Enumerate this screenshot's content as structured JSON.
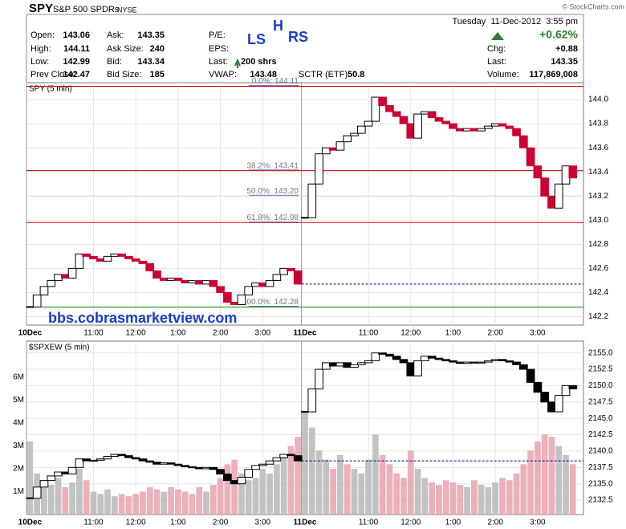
{
  "header": {
    "symbol": "SPY",
    "name": "S&P 500 SPDRs",
    "exchange": "NYSE",
    "datetime": "Tuesday  11-Dec-2012  3:55 pm",
    "copyright": "© StockCharts.com",
    "annotations": [
      "LS",
      "H",
      "RS"
    ],
    "quote": [
      [
        {
          "label": "Open:",
          "value": 143.06
        },
        {
          "label": "High:",
          "value": 144.11
        },
        {
          "label": "Low:",
          "value": 142.99
        },
        {
          "label": "Prev Close:",
          "value": 142.47
        }
      ],
      [
        {
          "label": "Ask:",
          "value": 143.35
        },
        {
          "label": "Ask Size:",
          "value": 240
        },
        {
          "label": "Bid:",
          "value": 143.34
        },
        {
          "label": "Bid Size:",
          "value": 185
        }
      ],
      [
        {
          "label": "P/E:"
        },
        {
          "label": "EPS:"
        },
        {
          "label": "Last:",
          "value": "200 shrs"
        },
        {
          "label": "VWAP:",
          "value": 143.48
        }
      ],
      [
        {
          "label": "SCTR (ETF):",
          "value": 50.8
        }
      ],
      [
        {
          "value": {
            "value": 0.62,
            "label": "+0.62%"
          }
        },
        {
          "label": "Chg:",
          "value": {
            "value": 0.88,
            "label": "+0.88"
          }
        },
        {
          "label": "Last:",
          "value": 143.35
        },
        {
          "label": "Volume:",
          "value": {
            "value": 117869008,
            "label": "117,869,008"
          }
        }
      ]
    ]
  },
  "x_axis": {
    "dates": [
      "10Dec",
      "11Dec"
    ],
    "time_ticks": [
      {
        "value": 9,
        "label": "11:00"
      },
      {
        "value": 15,
        "label": "12:00"
      },
      {
        "value": 21,
        "label": "1:00"
      },
      {
        "value": 27,
        "label": "2:00"
      },
      {
        "value": 33,
        "label": "3:00"
      }
    ],
    "xlim": [
      -0.5,
      78.5
    ]
  },
  "chart_data": [
    {
      "type": "candlestick",
      "title": "SPY (5 min)",
      "watermark": "bbs.cobrasmarketview.com",
      "up_color": "#000000",
      "down_color": "#cc0033",
      "prev_close_line_color": "#000080",
      "grid": true,
      "ylim": [
        142.13,
        144.14
      ],
      "yticks": [
        142.2,
        142.4,
        142.6,
        142.8,
        {
          "value": 143,
          "label": "143.0"
        },
        143.2,
        143.4,
        143.6,
        143.8,
        {
          "value": 144,
          "label": "144.0"
        }
      ],
      "levels": [
        {
          "value": 144.11,
          "label": "0.0%: 144.11",
          "color": "#cc0000"
        },
        {
          "value": 143.41,
          "label": "38.2%: 143.41",
          "color": "#cc0000"
        },
        {
          "value": 143.2,
          "label": "50.0%: 143.20",
          "color": "#dddddd"
        },
        {
          "value": 142.98,
          "label": "61.8%: 142.98",
          "color": "#cc0000"
        },
        {
          "value": 142.28,
          "label": "100.0%: 142.28",
          "color": "#008800"
        }
      ],
      "days": [
        {
          "close": [
            142.28,
            142.38,
            142.45,
            142.5,
            142.55,
            142.52,
            142.6,
            142.72,
            142.7,
            142.68,
            142.66,
            142.7,
            142.72,
            142.7,
            142.68,
            142.66,
            142.64,
            142.58,
            142.52,
            142.5,
            142.52,
            142.5,
            142.48,
            142.5,
            142.47,
            142.5,
            142.45,
            142.4,
            142.32,
            142.3,
            142.38,
            142.45,
            142.48,
            142.45,
            142.5,
            142.55,
            142.6,
            142.58,
            142.47
          ]
        },
        {
          "close": [
            143.02,
            143.3,
            143.55,
            143.6,
            143.58,
            143.65,
            143.7,
            143.72,
            143.78,
            143.82,
            144.02,
            143.95,
            143.9,
            143.86,
            143.8,
            143.68,
            143.88,
            143.9,
            143.85,
            143.82,
            143.8,
            143.76,
            143.74,
            143.76,
            143.74,
            143.76,
            143.78,
            143.8,
            143.78,
            143.76,
            143.7,
            143.6,
            143.45,
            143.35,
            143.2,
            143.1,
            143.3,
            143.45,
            143.35
          ]
        }
      ]
    },
    {
      "type": "candle-volume",
      "title": "$SPXEW (5 min)",
      "up_color": "#000000",
      "down_color": "#000000",
      "volume_up_color": "#b8b8b8",
      "volume_down_color": "#e9a3ae",
      "prev_close_line_color": "#000080",
      "grid": true,
      "ylim": [
        2130.3,
        2156.8
      ],
      "yticks": [
        2132.5,
        {
          "value": 2135,
          "label": "2135.0"
        },
        2137.5,
        {
          "value": 2140,
          "label": "2140.0"
        },
        2142.5,
        {
          "value": 2145,
          "label": "2145.0"
        },
        2147.5,
        {
          "value": 2150,
          "label": "2150.0"
        },
        2152.5,
        {
          "value": 2155,
          "label": "2155.0"
        }
      ],
      "volume_lim": [
        0,
        7580000
      ],
      "volume_ticks": [
        {
          "value": 1000000,
          "label": "1M"
        },
        {
          "value": 2000000,
          "label": "2M"
        },
        {
          "value": 3000000,
          "label": "3M"
        },
        {
          "value": 4000000,
          "label": "4M"
        },
        {
          "value": 5000000,
          "label": "5M"
        },
        {
          "value": 6000000,
          "label": "6M"
        }
      ],
      "days": [
        {
          "close": [
            2132.8,
            2134.5,
            2135.5,
            2136.2,
            2136.8,
            2136.5,
            2137.5,
            2138.8,
            2138.5,
            2138.6,
            2138.8,
            2139.2,
            2139.5,
            2139.3,
            2139.0,
            2138.8,
            2138.5,
            2138.3,
            2138.0,
            2138.2,
            2138.0,
            2137.8,
            2137.6,
            2137.5,
            2137.3,
            2137.5,
            2137.2,
            2136.5,
            2135.5,
            2135.0,
            2136.0,
            2137.2,
            2137.8,
            2138.0,
            2138.5,
            2139.0,
            2139.5,
            2139.3,
            2138.5
          ],
          "volume": [
            3200000,
            1800000,
            1500000,
            1300000,
            1600000,
            1200000,
            1400000,
            2000000,
            1500000,
            1000000,
            900000,
            1100000,
            800000,
            900000,
            800000,
            900000,
            1000000,
            1200000,
            1100000,
            1000000,
            1200000,
            1100000,
            1000000,
            900000,
            1200000,
            1000000,
            1300000,
            1600000,
            2200000,
            2400000,
            1800000,
            1500000,
            1600000,
            2000000,
            1800000,
            2200000,
            2600000,
            3000000,
            3400000
          ]
        },
        {
          "close": [
            2146.0,
            2149.5,
            2152.5,
            2153.5,
            2153.0,
            2153.5,
            2152.8,
            2153.2,
            2153.5,
            2153.8,
            2155.0,
            2154.8,
            2154.5,
            2154.0,
            2153.5,
            2151.5,
            2153.8,
            2154.5,
            2154.2,
            2154.0,
            2153.8,
            2153.6,
            2153.4,
            2153.6,
            2153.5,
            2153.6,
            2153.8,
            2154.0,
            2153.8,
            2153.6,
            2153.2,
            2152.5,
            2150.5,
            2149.0,
            2147.5,
            2146.0,
            2148.5,
            2150.0,
            2149.5
          ],
          "volume": [
            4500000,
            3800000,
            2800000,
            2400000,
            2000000,
            2600000,
            2200000,
            2000000,
            1800000,
            2400000,
            3500000,
            2600000,
            2200000,
            1800000,
            1600000,
            2800000,
            2000000,
            1600000,
            1400000,
            1300000,
            1500000,
            1400000,
            1300000,
            1200000,
            1500000,
            1300000,
            1200000,
            1400000,
            1600000,
            1500000,
            1800000,
            2200000,
            2800000,
            3200000,
            3500000,
            3400000,
            3000000,
            2600000,
            2200000
          ]
        }
      ]
    }
  ]
}
